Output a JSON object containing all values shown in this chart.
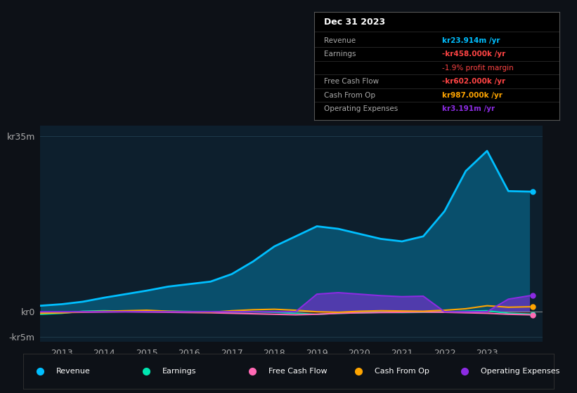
{
  "background_color": "#0d1117",
  "plot_bg_color": "#0d1f2d",
  "grid_color": "#1e3a4a",
  "years": [
    2012.5,
    2013.0,
    2013.5,
    2014.0,
    2014.5,
    2015.0,
    2015.5,
    2016.0,
    2016.5,
    2017.0,
    2017.5,
    2018.0,
    2018.5,
    2019.0,
    2019.5,
    2020.0,
    2020.5,
    2021.0,
    2021.5,
    2022.0,
    2022.5,
    2023.0,
    2023.5,
    2024.0
  ],
  "revenue": [
    1.2,
    1.5,
    2.0,
    2.8,
    3.5,
    4.2,
    5.0,
    5.5,
    6.0,
    7.5,
    10.0,
    13.0,
    15.0,
    17.0,
    16.5,
    15.5,
    14.5,
    14.0,
    15.0,
    20.0,
    28.0,
    32.0,
    24.0,
    23.9
  ],
  "earnings": [
    -0.5,
    -0.3,
    0.1,
    0.2,
    0.1,
    0.15,
    0.1,
    0.05,
    -0.1,
    -0.05,
    0.0,
    -0.1,
    -0.3,
    -0.5,
    -0.3,
    -0.2,
    -0.1,
    -0.15,
    -0.1,
    -0.05,
    0.1,
    0.2,
    -0.3,
    -0.46
  ],
  "free_cash_flow": [
    -0.2,
    -0.15,
    -0.1,
    -0.05,
    0.0,
    -0.05,
    -0.1,
    -0.15,
    -0.2,
    -0.3,
    -0.4,
    -0.5,
    -0.6,
    -0.5,
    -0.3,
    -0.2,
    -0.15,
    -0.1,
    -0.05,
    -0.1,
    -0.2,
    -0.3,
    -0.5,
    -0.6
  ],
  "cash_from_op": [
    -0.3,
    -0.2,
    0.0,
    0.1,
    0.2,
    0.3,
    0.1,
    0.0,
    -0.1,
    0.2,
    0.4,
    0.5,
    0.3,
    0.0,
    -0.1,
    0.1,
    0.2,
    0.15,
    0.1,
    0.3,
    0.6,
    1.2,
    0.9,
    0.99
  ],
  "op_expenses": [
    0.0,
    0.0,
    0.0,
    0.0,
    0.0,
    0.0,
    0.0,
    0.0,
    0.0,
    0.0,
    0.0,
    0.0,
    0.0,
    3.5,
    3.8,
    3.5,
    3.2,
    3.0,
    3.1,
    0.0,
    0.0,
    0.0,
    2.5,
    3.19
  ],
  "revenue_color": "#00bfff",
  "earnings_color": "#00e5b0",
  "fcf_color": "#ff69b4",
  "cashop_color": "#ffa500",
  "opex_color": "#8b2be2",
  "ylim": [
    -6,
    37
  ],
  "yticks": [
    -5,
    0,
    35
  ],
  "ytick_labels": [
    "-kr5m",
    "kr0",
    "kr35m"
  ],
  "xlabel_years": [
    2013,
    2014,
    2015,
    2016,
    2017,
    2018,
    2019,
    2020,
    2021,
    2022,
    2023
  ],
  "info_box": {
    "title": "Dec 31 2023",
    "rows": [
      {
        "label": "Revenue",
        "value": "kr23.914m /yr",
        "value_color": "#00bfff",
        "bold": true
      },
      {
        "label": "Earnings",
        "value": "-kr458.000k /yr",
        "value_color": "#ff4444",
        "bold": true
      },
      {
        "label": "",
        "value": "-1.9% profit margin",
        "value_color": "#ff4444",
        "bold": false
      },
      {
        "label": "Free Cash Flow",
        "value": "-kr602.000k /yr",
        "value_color": "#ff4444",
        "bold": true
      },
      {
        "label": "Cash From Op",
        "value": "kr987.000k /yr",
        "value_color": "#ffa500",
        "bold": true
      },
      {
        "label": "Operating Expenses",
        "value": "kr3.191m /yr",
        "value_color": "#8b2be2",
        "bold": true
      }
    ]
  },
  "legend_items": [
    {
      "label": "Revenue",
      "color": "#00bfff"
    },
    {
      "label": "Earnings",
      "color": "#00e5b0"
    },
    {
      "label": "Free Cash Flow",
      "color": "#ff69b4"
    },
    {
      "label": "Cash From Op",
      "color": "#ffa500"
    },
    {
      "label": "Operating Expenses",
      "color": "#8b2be2"
    }
  ]
}
